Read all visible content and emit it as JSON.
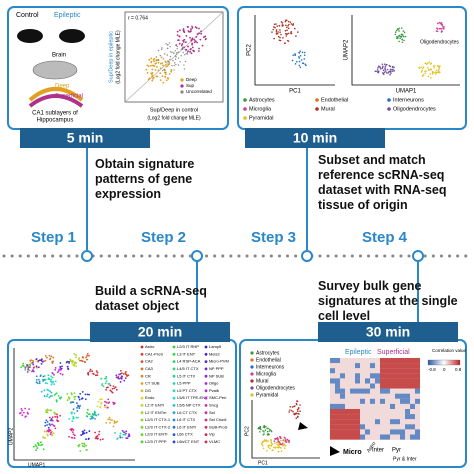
{
  "steps": [
    {
      "label": "Step 1",
      "time": "5 min",
      "description": "Obtain signature patterns of gene expression"
    },
    {
      "label": "Step 2",
      "time": "20 min",
      "description": "Build a scRNA-seq dataset object"
    },
    {
      "label": "Step 3",
      "time": "10 min",
      "description": "Subset and match reference scRNA-seq dataset with RNA-seq tissue of origin"
    },
    {
      "label": "Step 4",
      "time": "30 min",
      "description": "Survey bulk gene signatures at the single cell level"
    }
  ],
  "panel1": {
    "control": "Control",
    "epileptic": "Epileptic",
    "brain": "Brain",
    "deep": "Deep",
    "superficial": "Superficial",
    "caption1": "CA1 sublayers of",
    "caption2": "Hippocampus",
    "r": "r = 0.764",
    "ylabel1": "Sup/Deep in epileptic",
    "ylabel2": "(Log2 fold change MLE)",
    "xlabel1": "Sup/Deep in control",
    "xlabel2": "(Log2 fold change MLE)",
    "legend": [
      {
        "name": "Deep",
        "color": "#e0a020"
      },
      {
        "name": "Sup",
        "color": "#b0308a"
      },
      {
        "name": "Uncorrelated",
        "color": "#888888"
      }
    ]
  },
  "panel2": {
    "pc1": "PC1",
    "pc2": "PC2",
    "umap1": "UMAP1",
    "umap2": "UMAP2",
    "oligo": "Oligodendrocytes",
    "legend": [
      {
        "name": "Astrocytes",
        "color": "#3a9a3a"
      },
      {
        "name": "Endothelial",
        "color": "#e07020"
      },
      {
        "name": "Interneurons",
        "color": "#2070c0"
      },
      {
        "name": "Microglia",
        "color": "#d04090"
      },
      {
        "name": "Mural",
        "color": "#b03020"
      },
      {
        "name": "Oligodendrocytes",
        "color": "#7050a0"
      },
      {
        "name": "Pyramidal",
        "color": "#e0c020"
      }
    ]
  },
  "panel3": {
    "umap1": "UMAP1",
    "umap2": "UMAP2",
    "legend": [
      "Astro",
      "CA1-ProS",
      "CA2",
      "CA3",
      "CR",
      "CT SUB",
      "DG",
      "Endo",
      "L2 IT ENTl",
      "L2 IT ENTm",
      "L2/3 IT CTX-1",
      "L2/3 IT CTX-2",
      "L2/3 IT ENTl",
      "L2/3 IT PPP",
      "L2/3 IT RHP",
      "L3 IT ENT",
      "L4 RSP-ACA",
      "L4/5 IT CTX",
      "L5 IT CTX",
      "L5 PPP",
      "L5 PT CTX",
      "L5/6 IT TPE-ENT",
      "L5/6 NP CTX",
      "L6 CT CTX",
      "L6 IT CTX",
      "L6 IT ENTl",
      "L6b CTX",
      "L6b/CT ENT",
      "Lamp5",
      "Meis2",
      "Micro-PVM",
      "NP PPP",
      "NP SUB",
      "Oligo",
      "Pvalb",
      "SMC-Peri",
      "Sncg",
      "Sst",
      "Sst Chodl",
      "SUB-ProS",
      "Vip",
      "VLMC"
    ]
  },
  "panel4": {
    "title1": "Epileptic",
    "title2": "Superficial",
    "colorbar": "Correlation value",
    "cbmax": "0.8",
    "cbmid": "0",
    "cbmin": "-0.8",
    "pc1": "PC1",
    "pc2": "PC2",
    "micro": "Micro",
    "astro": "Astro",
    "inter": "Inter",
    "pyr": "Pyr",
    "pyrinter": "Pyr & Inter",
    "legend": [
      {
        "name": "Astrocytes",
        "color": "#3a9a3a"
      },
      {
        "name": "Endothelial",
        "color": "#e07020"
      },
      {
        "name": "Interneurons",
        "color": "#2070c0"
      },
      {
        "name": "Microglia",
        "color": "#d04090"
      },
      {
        "name": "Mural",
        "color": "#b03020"
      },
      {
        "name": "Oligodendrocytes",
        "color": "#7050a0"
      },
      {
        "name": "Pyramidal",
        "color": "#e0c020"
      }
    ]
  }
}
